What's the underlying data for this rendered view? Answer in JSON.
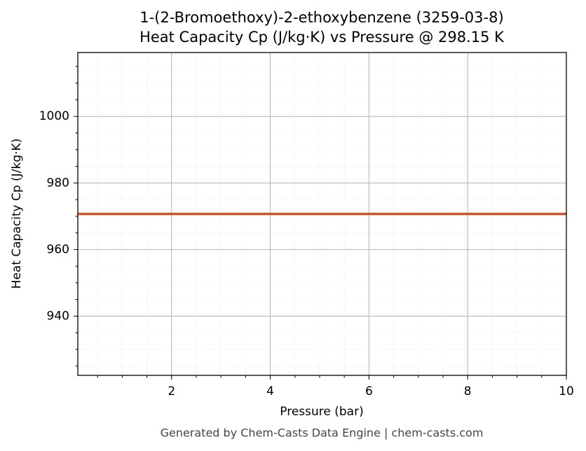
{
  "chart_data": {
    "type": "line",
    "title": "1-(2-Bromoethoxy)-2-ethoxybenzene (3259-03-8)",
    "subtitle": "Heat Capacity Cp (J/kg·K) vs Pressure @ 298.15 K",
    "x_label": "Pressure (bar)",
    "y_label": "Heat Capacity Cp (J/kg·K)",
    "footer": "Generated by Chem-Casts Data Engine | chem-casts.com",
    "x": [
      0.1,
      10
    ],
    "series": [
      {
        "name": "Cp",
        "color": "#cf5427",
        "values": [
          970.7,
          970.7
        ]
      }
    ],
    "xlim": [
      0.1,
      10
    ],
    "xticks": [
      2,
      4,
      6,
      8,
      10
    ],
    "xminorticks": [
      0.5,
      1,
      1.5,
      2.5,
      3,
      3.5,
      4.5,
      5,
      5.5,
      6.5,
      7,
      7.5,
      8.5,
      9,
      9.5
    ],
    "ylim": [
      922.2,
      1019.2
    ],
    "yticks": [
      940,
      960,
      980,
      1000
    ],
    "yminorticks": [
      925,
      930,
      935,
      945,
      950,
      955,
      965,
      970,
      975,
      985,
      990,
      995,
      1005,
      1010,
      1015
    ],
    "grid": true
  }
}
